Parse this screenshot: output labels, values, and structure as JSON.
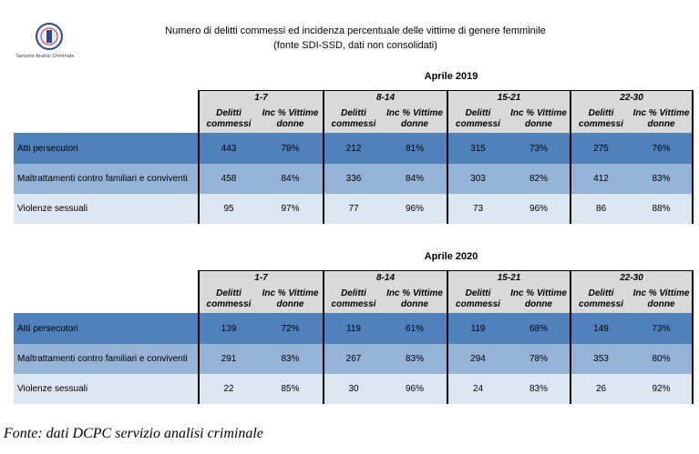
{
  "logo_caption": "Servizio Analisi Criminale",
  "title_line1": "Numero di delitti commessi ed incidenza percentuale delle vittime di genere femminile",
  "title_line2": "(fonte SDI-SSD, dati non consolidati)",
  "col_header_count": "Delitti commessi",
  "col_header_pct": "Inc % Vittime donne",
  "tables": [
    {
      "period": "Aprile 2019",
      "weeks": [
        "1-7",
        "8-14",
        "15-21",
        "22-30"
      ],
      "rows": [
        {
          "label": "Atti persecutori",
          "cells": [
            "443",
            "78%",
            "212",
            "81%",
            "315",
            "73%",
            "275",
            "76%"
          ]
        },
        {
          "label": "Maltrattamenti contro familiari e conviventi",
          "cells": [
            "458",
            "84%",
            "336",
            "84%",
            "303",
            "82%",
            "412",
            "83%"
          ]
        },
        {
          "label": "Violenze sessuali",
          "cells": [
            "95",
            "97%",
            "77",
            "96%",
            "73",
            "96%",
            "86",
            "88%"
          ]
        }
      ]
    },
    {
      "period": "Aprile 2020",
      "weeks": [
        "1-7",
        "8-14",
        "15-21",
        "22-30"
      ],
      "rows": [
        {
          "label": "Atti persecutori",
          "cells": [
            "139",
            "72%",
            "119",
            "61%",
            "119",
            "68%",
            "149",
            "73%"
          ]
        },
        {
          "label": "Maltrattamenti contro familiari e conviventi",
          "cells": [
            "291",
            "83%",
            "267",
            "83%",
            "294",
            "78%",
            "353",
            "80%"
          ]
        },
        {
          "label": "Violenze sessuali",
          "cells": [
            "22",
            "85%",
            "30",
            "96%",
            "24",
            "83%",
            "26",
            "92%"
          ]
        }
      ]
    }
  ],
  "footer": "Fonte: dati DCPC servizio analisi criminale"
}
